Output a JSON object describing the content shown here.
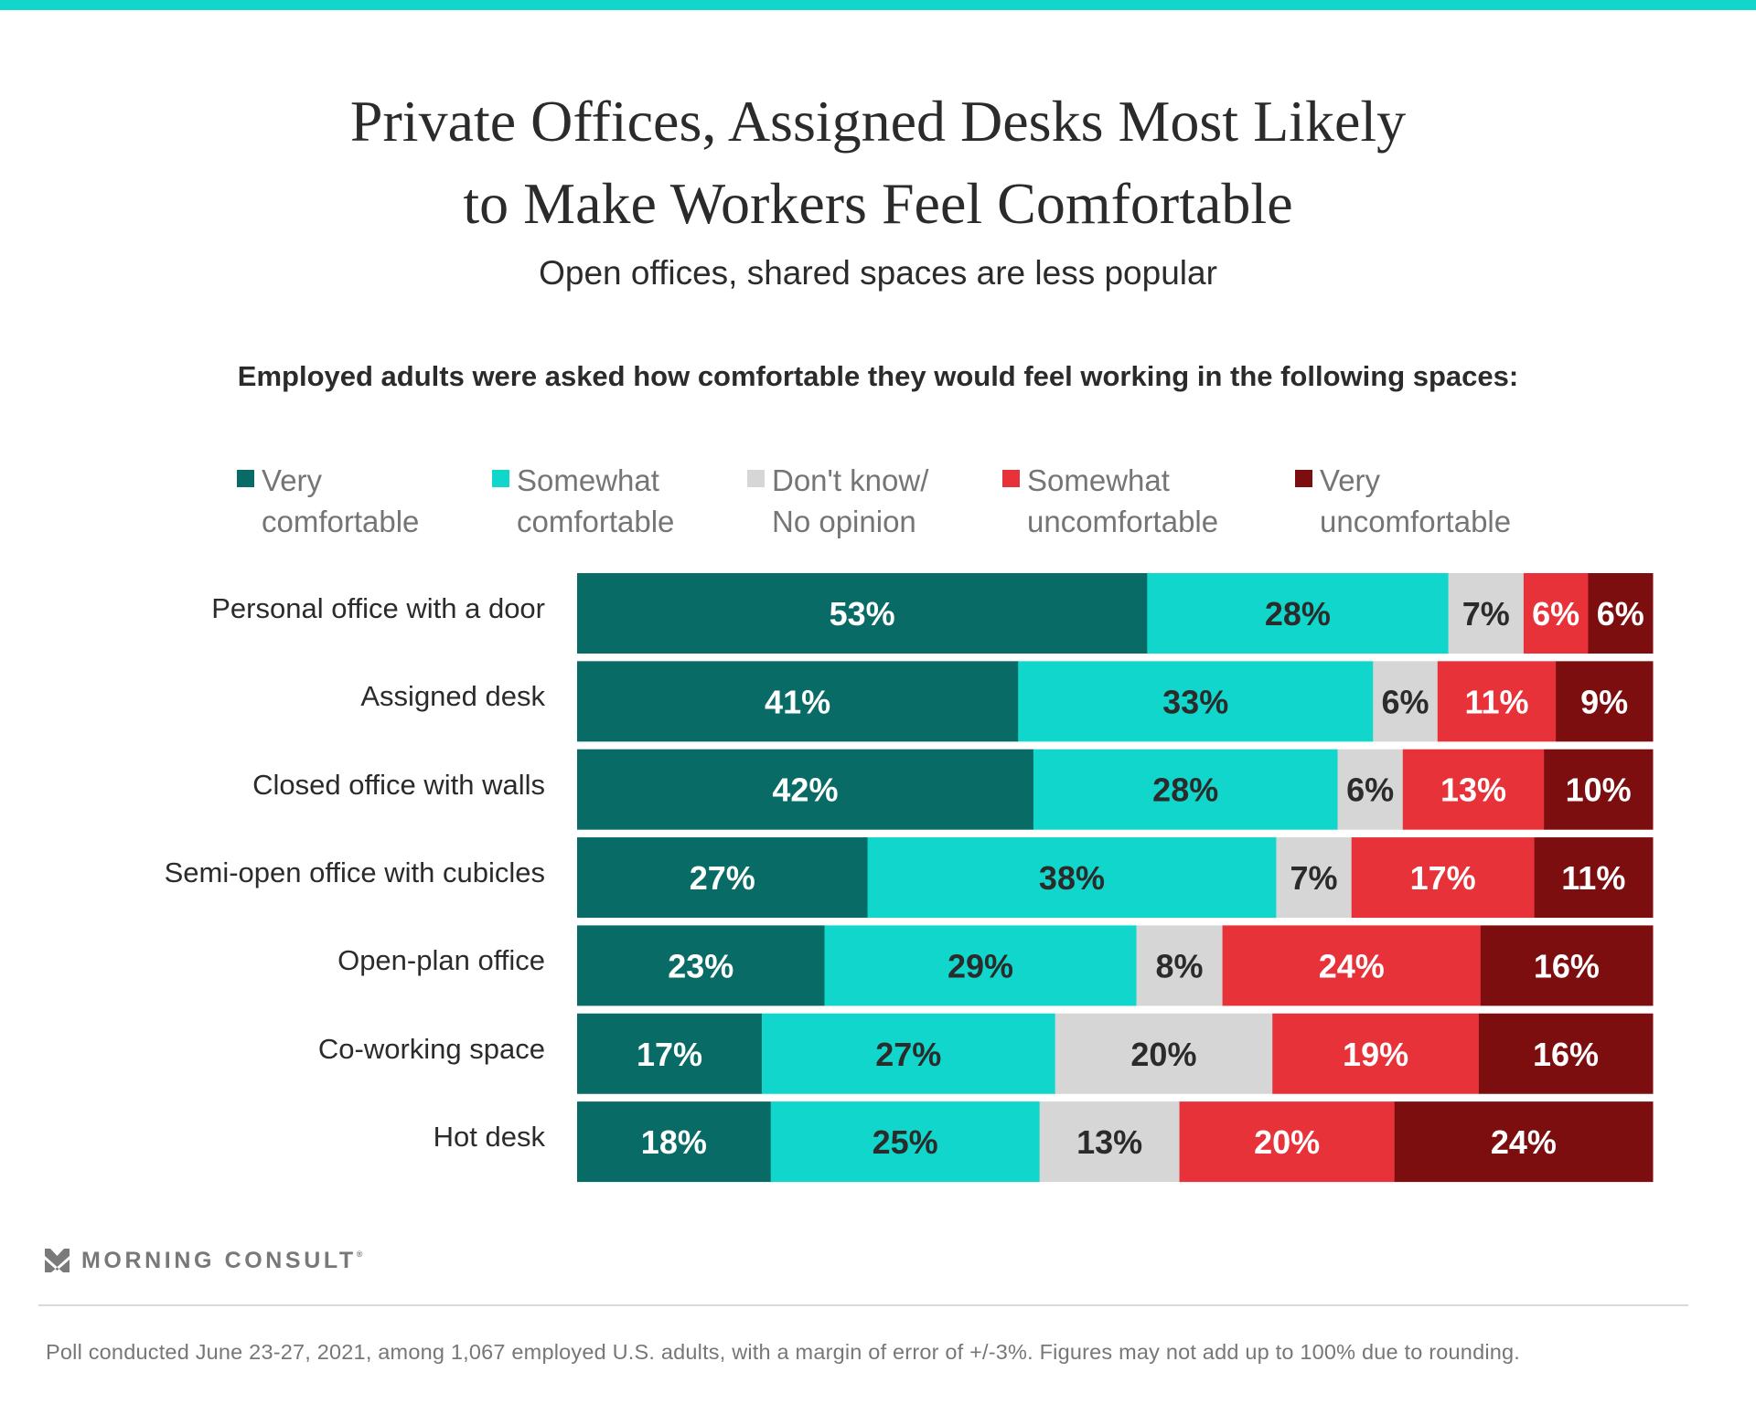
{
  "header": {
    "title_line1": "Private Offices, Assigned Desks Most Likely",
    "title_line2": "to Make Workers Feel Comfortable",
    "subtitle": "Open offices, shared spaces are less popular",
    "question": "Employed adults were asked how comfortable they would feel working in the following spaces:"
  },
  "colors": {
    "accent_stripe": "#10D6CB",
    "very_comfortable": "#086B66",
    "somewhat_comfortable": "#10D6CB",
    "dont_know": "#D6D6D6",
    "somewhat_uncomfortable": "#E8323A",
    "very_uncomfortable": "#7D0E10"
  },
  "legend": [
    {
      "line1": "Very",
      "line2": "comfortable",
      "color": "#086B66"
    },
    {
      "line1": "Somewhat",
      "line2": "comfortable",
      "color": "#10D6CB"
    },
    {
      "line1": "Don't know/",
      "line2": "No opinion",
      "color": "#D6D6D6"
    },
    {
      "line1": "Somewhat",
      "line2": "uncomfortable",
      "color": "#E8323A"
    },
    {
      "line1": "Very",
      "line2": "uncomfortable",
      "color": "#7D0E10"
    }
  ],
  "chart_data": {
    "type": "bar",
    "orientation": "horizontal",
    "stacked": true,
    "normalized": true,
    "title": "Private Offices, Assigned Desks Most Likely to Make Workers Feel Comfortable",
    "subtitle": "Open offices, shared spaces are less popular",
    "xlabel": "",
    "ylabel": "",
    "grid": false,
    "legend_position": "top",
    "value_format": "percent",
    "categories": [
      "Personal office with a door",
      "Assigned desk",
      "Closed office with walls",
      "Semi-open office with cubicles",
      "Open-plan office",
      "Co-working space",
      "Hot desk"
    ],
    "series": [
      {
        "name": "Very comfortable",
        "color": "#086B66",
        "label_color": "#FFFFFF",
        "values": [
          53,
          41,
          42,
          27,
          23,
          17,
          18
        ]
      },
      {
        "name": "Somewhat comfortable",
        "color": "#10D6CB",
        "label_color": "#2B2B2B",
        "values": [
          28,
          33,
          28,
          38,
          29,
          27,
          25
        ]
      },
      {
        "name": "Don't know/No opinion",
        "color": "#D6D6D6",
        "label_color": "#2B2B2B",
        "values": [
          7,
          6,
          6,
          7,
          8,
          20,
          13
        ]
      },
      {
        "name": "Somewhat uncomfortable",
        "color": "#E8323A",
        "label_color": "#FFFFFF",
        "values": [
          6,
          11,
          13,
          17,
          24,
          19,
          20
        ]
      },
      {
        "name": "Very uncomfortable",
        "color": "#7D0E10",
        "label_color": "#FFFFFF",
        "values": [
          6,
          9,
          10,
          11,
          16,
          16,
          24
        ]
      }
    ]
  },
  "footer": {
    "brand": "MORNING CONSULT",
    "brand_mark": "®",
    "note": "Poll conducted June 23-27, 2021, among 1,067 employed U.S. adults, with a margin of error of +/-3%. Figures may not add up to 100% due to rounding."
  }
}
